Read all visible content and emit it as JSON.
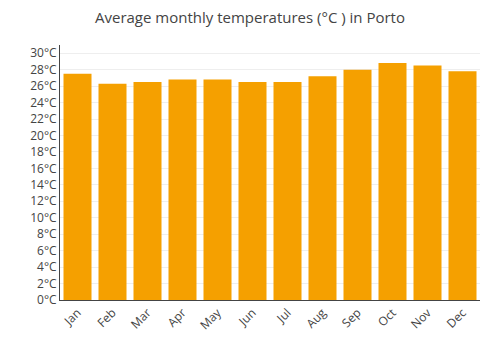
{
  "chart_data": {
    "type": "bar",
    "title": "Average monthly temperatures (°C ) in Porto",
    "categories": [
      "Jan",
      "Feb",
      "Mar",
      "Apr",
      "May",
      "Jun",
      "Jul",
      "Aug",
      "Sep",
      "Oct",
      "Nov",
      "Dec"
    ],
    "values": [
      27.5,
      26.3,
      26.5,
      26.8,
      26.8,
      26.5,
      26.5,
      27.2,
      28.0,
      28.8,
      28.5,
      27.8
    ],
    "color": "#F5A000",
    "ylim": [
      0,
      31
    ],
    "yticks": [
      {
        "value": 0,
        "label": "0°C"
      },
      {
        "value": 2,
        "label": "2°C"
      },
      {
        "value": 4,
        "label": "4°C"
      },
      {
        "value": 6,
        "label": "6°C"
      },
      {
        "value": 8,
        "label": "8°C"
      },
      {
        "value": 10,
        "label": "10°C"
      },
      {
        "value": 12,
        "label": "12°C"
      },
      {
        "value": 14,
        "label": "14°C"
      },
      {
        "value": 16,
        "label": "16°C"
      },
      {
        "value": 18,
        "label": "18°C"
      },
      {
        "value": 20,
        "label": "20°C"
      },
      {
        "value": 22,
        "label": "22°C"
      },
      {
        "value": 24,
        "label": "24°C"
      },
      {
        "value": 26,
        "label": "26°C"
      },
      {
        "value": 28,
        "label": "28°C"
      },
      {
        "value": 30,
        "label": "30°C"
      }
    ],
    "grid": true
  }
}
